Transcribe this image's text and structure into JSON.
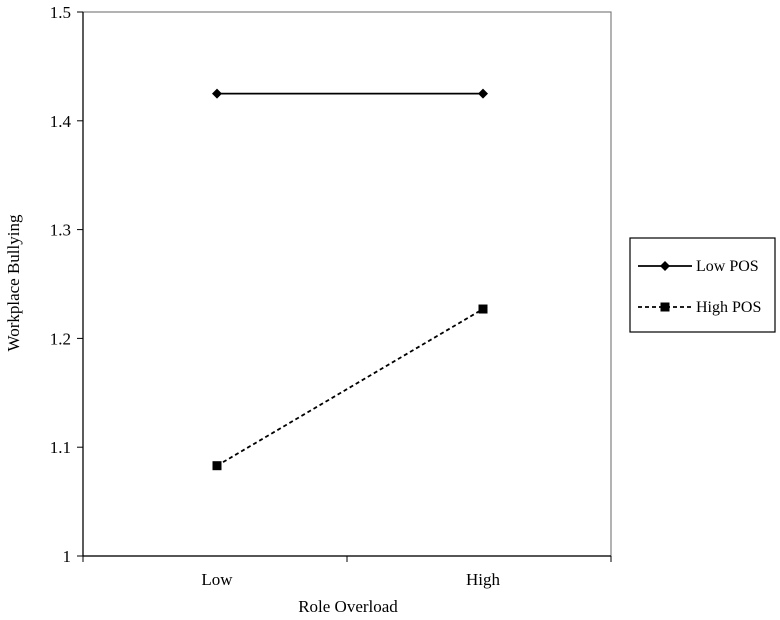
{
  "chart_data": {
    "type": "line",
    "title": "",
    "xlabel": "Role Overload",
    "ylabel": "Workplace Bullying",
    "categories": [
      "Low",
      "High"
    ],
    "ylim": [
      1,
      1.5
    ],
    "yticks": [
      "1",
      "1.1",
      "1.2",
      "1.3",
      "1.4",
      "1.5"
    ],
    "grid": false,
    "legend_position": "right",
    "series": [
      {
        "name": "Low POS",
        "values": [
          1.425,
          1.425
        ],
        "marker": "diamond",
        "line_style": "solid",
        "color": "#000000"
      },
      {
        "name": "High POS",
        "values": [
          1.083,
          1.227
        ],
        "marker": "square",
        "line_style": "dashed",
        "color": "#000000"
      }
    ]
  }
}
